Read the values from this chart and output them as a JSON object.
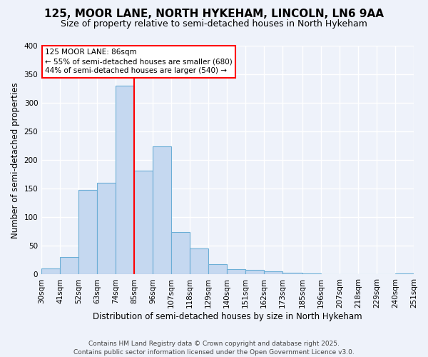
{
  "title": "125, MOOR LANE, NORTH HYKEHAM, LINCOLN, LN6 9AA",
  "subtitle": "Size of property relative to semi-detached houses in North Hykeham",
  "xlabel": "Distribution of semi-detached houses by size in North Hykeham",
  "ylabel": "Number of semi-detached properties",
  "bin_labels": [
    "30sqm",
    "41sqm",
    "52sqm",
    "63sqm",
    "74sqm",
    "85sqm",
    "96sqm",
    "107sqm",
    "118sqm",
    "129sqm",
    "140sqm",
    "151sqm",
    "162sqm",
    "173sqm",
    "185sqm",
    "196sqm",
    "207sqm",
    "218sqm",
    "229sqm",
    "240sqm",
    "251sqm"
  ],
  "bin_edges": [
    30,
    41,
    52,
    63,
    74,
    85,
    96,
    107,
    118,
    129,
    140,
    151,
    162,
    173,
    185,
    196,
    207,
    218,
    229,
    240,
    251
  ],
  "bar_heights": [
    10,
    30,
    148,
    160,
    330,
    182,
    224,
    74,
    45,
    18,
    9,
    8,
    5,
    3,
    2,
    1,
    1,
    0,
    0,
    2
  ],
  "bar_color": "#c5d8f0",
  "bar_edge_color": "#6baed6",
  "ylim": [
    0,
    400
  ],
  "yticks": [
    0,
    50,
    100,
    150,
    200,
    250,
    300,
    350,
    400
  ],
  "vline_x": 85,
  "annotation_title": "125 MOOR LANE: 86sqm",
  "annotation_line1": "← 55% of semi-detached houses are smaller (680)",
  "annotation_line2": "44% of semi-detached houses are larger (540) →",
  "footer1": "Contains HM Land Registry data © Crown copyright and database right 2025.",
  "footer2": "Contains public sector information licensed under the Open Government Licence v3.0.",
  "background_color": "#eef2fa",
  "grid_color": "#ffffff",
  "title_fontsize": 11,
  "subtitle_fontsize": 9,
  "label_fontsize": 8.5,
  "tick_fontsize": 7.5,
  "footer_fontsize": 6.5
}
